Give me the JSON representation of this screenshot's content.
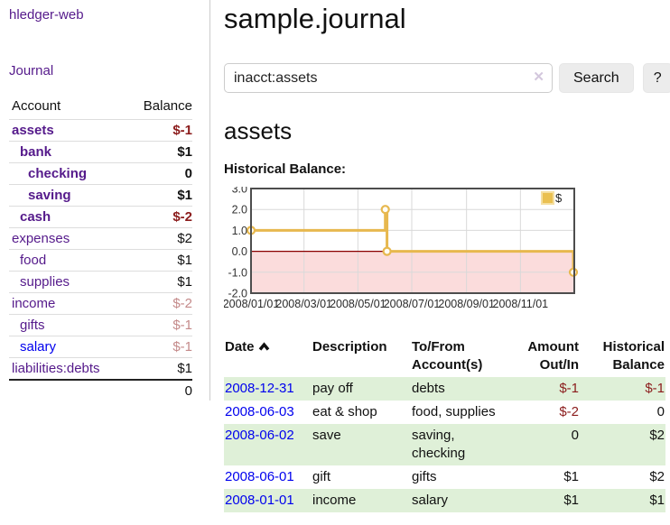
{
  "palette": {
    "link_visited_purple": "#551A8B",
    "link_blue": "#0000EE",
    "negative_red": "#8b1c1c",
    "negative_muted": "#c48a8a",
    "row_green": "#dff0d8",
    "chart_line_gold": "#e7b84e",
    "chart_negative_fill": "#fbdcdc",
    "chart_zero_line": "#8b0000"
  },
  "sidebar": {
    "brand": "hledger-web",
    "journal_link": "Journal",
    "accounts_table": {
      "headers": {
        "account": "Account",
        "balance": "Balance"
      },
      "rows": [
        {
          "account": "assets",
          "depth": 1,
          "balance": "$-1",
          "bold": true,
          "balance_style": "neg-strong"
        },
        {
          "account": "bank",
          "depth": 2,
          "balance": "$1",
          "bold": true
        },
        {
          "account": "checking",
          "depth": 3,
          "balance": "0",
          "bold": true
        },
        {
          "account": "saving",
          "depth": 3,
          "balance": "$1",
          "bold": true
        },
        {
          "account": "cash",
          "depth": 2,
          "balance": "$-2",
          "bold": true,
          "balance_style": "neg-strong"
        },
        {
          "account": "expenses",
          "depth": 1,
          "balance": "$2"
        },
        {
          "account": "food",
          "depth": 2,
          "balance": "$1"
        },
        {
          "account": "supplies",
          "depth": 2,
          "balance": "$1"
        },
        {
          "account": "income",
          "depth": 1,
          "balance": "$-2",
          "balance_style": "neg-soft"
        },
        {
          "account": "gifts",
          "depth": 2,
          "balance": "$-1",
          "balance_style": "neg-soft"
        },
        {
          "account": "salary",
          "depth": 2,
          "balance": "$-1",
          "balance_style": "neg-soft",
          "link_blue": true
        },
        {
          "account": "liabilities:debts",
          "depth": 1,
          "balance": "$1"
        }
      ],
      "total": "0"
    }
  },
  "main": {
    "title": "sample.journal",
    "search": {
      "value": "inacct:assets",
      "clear_icon": "✕",
      "search_button": "Search",
      "help_button": "?"
    },
    "account_heading": "assets",
    "chart_heading": "Historical Balance:"
  },
  "chart_data": {
    "type": "line",
    "step": true,
    "title": "Historical Balance",
    "series": [
      {
        "name": "$",
        "points": [
          {
            "date": "2008-01-01",
            "value": 1
          },
          {
            "date": "2008-06-01",
            "value": 2
          },
          {
            "date": "2008-06-03",
            "value": 0
          },
          {
            "date": "2008-12-31",
            "value": -1
          }
        ]
      }
    ],
    "x_range": [
      "2008-01-01",
      "2009-01-01"
    ],
    "x_tick_dates": [
      "2008-01-01",
      "2008-03-01",
      "2008-05-01",
      "2008-07-01",
      "2008-09-01",
      "2008-11-01"
    ],
    "x_tick_labels": [
      "2008/01/01",
      "2008/03/01",
      "2008/05/01",
      "2008/07/01",
      "2008/09/01",
      "2008/11/01"
    ],
    "ylim": [
      -2,
      3
    ],
    "y_ticks": [
      3,
      2,
      1,
      0,
      -1,
      -2
    ],
    "y_tick_labels": [
      "3.0",
      "2.0",
      "1.0",
      "0.0",
      "-1.0",
      "-2.0"
    ],
    "legend": {
      "label": "$",
      "position": "top-right"
    },
    "grid": true,
    "negative_region_shaded": true
  },
  "register_table": {
    "headers": {
      "date": "Date",
      "description": "Description",
      "accounts": "To/From Account(s)",
      "amount": "Amount Out/In",
      "balance": "Historical Balance"
    },
    "sort": {
      "column": "date",
      "direction": "ascending"
    },
    "rows": [
      {
        "date": "2008-12-31",
        "description": "pay off",
        "accounts": "debts",
        "amount": "$-1",
        "balance": "$-1"
      },
      {
        "date": "2008-06-03",
        "description": "eat & shop",
        "accounts": "food, supplies",
        "amount": "$-2",
        "balance": "0"
      },
      {
        "date": "2008-06-02",
        "description": "save",
        "accounts": "saving, checking",
        "amount": "0",
        "balance": "$2"
      },
      {
        "date": "2008-06-01",
        "description": "gift",
        "accounts": "gifts",
        "amount": "$1",
        "balance": "$2"
      },
      {
        "date": "2008-01-01",
        "description": "income",
        "accounts": "salary",
        "amount": "$1",
        "balance": "$1"
      }
    ]
  }
}
